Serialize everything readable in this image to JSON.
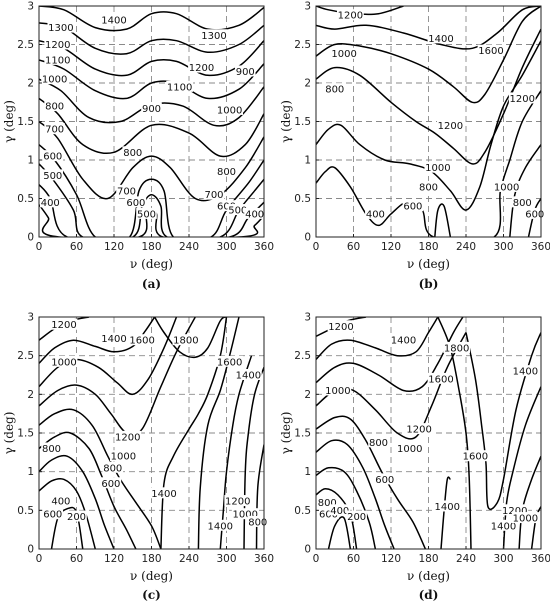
{
  "chart_data": [
    {
      "panel": "(a)",
      "type": "contour",
      "xlabel": "ν (deg)",
      "ylabel": "γ (deg)",
      "xlim": [
        0,
        360
      ],
      "ylim": [
        0,
        3
      ],
      "xticks": [
        0,
        60,
        120,
        180,
        240,
        300,
        360
      ],
      "yticks": [
        0,
        0.5,
        1,
        1.5,
        2,
        2.5,
        3
      ],
      "grid": true,
      "contour_levels": [
        400,
        500,
        600,
        700,
        800,
        900,
        1000,
        1100,
        1200,
        1300,
        1400
      ],
      "contour_labels": [
        {
          "text": "1400",
          "x": 120,
          "y": 2.82
        },
        {
          "text": "1300",
          "x": 35,
          "y": 2.72
        },
        {
          "text": "1300",
          "x": 280,
          "y": 2.62
        },
        {
          "text": "1200",
          "x": 30,
          "y": 2.5
        },
        {
          "text": "1200",
          "x": 260,
          "y": 2.2
        },
        {
          "text": "1100",
          "x": 30,
          "y": 2.3
        },
        {
          "text": "1100",
          "x": 225,
          "y": 1.95
        },
        {
          "text": "1000",
          "x": 25,
          "y": 2.05
        },
        {
          "text": "1000",
          "x": 305,
          "y": 1.65
        },
        {
          "text": "900",
          "x": 180,
          "y": 1.67
        },
        {
          "text": "900",
          "x": 330,
          "y": 2.15
        },
        {
          "text": "800",
          "x": 25,
          "y": 1.7
        },
        {
          "text": "800",
          "x": 150,
          "y": 1.1
        },
        {
          "text": "800",
          "x": 300,
          "y": 0.85
        },
        {
          "text": "700",
          "x": 25,
          "y": 1.4
        },
        {
          "text": "700",
          "x": 140,
          "y": 0.6
        },
        {
          "text": "700",
          "x": 280,
          "y": 0.55
        },
        {
          "text": "600",
          "x": 22,
          "y": 1.05
        },
        {
          "text": "600",
          "x": 155,
          "y": 0.45
        },
        {
          "text": "600",
          "x": 300,
          "y": 0.4
        },
        {
          "text": "500",
          "x": 22,
          "y": 0.8
        },
        {
          "text": "500",
          "x": 172,
          "y": 0.3
        },
        {
          "text": "500",
          "x": 318,
          "y": 0.35
        },
        {
          "text": "400",
          "x": 18,
          "y": 0.45
        },
        {
          "text": "400",
          "x": 345,
          "y": 0.3
        }
      ],
      "caption": "(a)"
    },
    {
      "panel": "(b)",
      "type": "contour",
      "xlabel": "ν (deg)",
      "ylabel": "γ (deg)",
      "xlim": [
        0,
        360
      ],
      "ylim": [
        0,
        3
      ],
      "xticks": [
        0,
        60,
        120,
        180,
        240,
        300,
        360
      ],
      "yticks": [
        0,
        0.5,
        1,
        1.5,
        2,
        2.5,
        3
      ],
      "grid": true,
      "contour_levels": [
        400,
        600,
        800,
        1000,
        1200,
        1400,
        1600
      ],
      "contour_labels": [
        {
          "text": "1200",
          "x": 55,
          "y": 2.88
        },
        {
          "text": "1400",
          "x": 200,
          "y": 2.58
        },
        {
          "text": "1600",
          "x": 280,
          "y": 2.42
        },
        {
          "text": "1000",
          "x": 45,
          "y": 2.38
        },
        {
          "text": "800",
          "x": 30,
          "y": 1.92
        },
        {
          "text": "1200",
          "x": 215,
          "y": 1.45
        },
        {
          "text": "1200",
          "x": 330,
          "y": 1.8
        },
        {
          "text": "1000",
          "x": 195,
          "y": 0.9
        },
        {
          "text": "1000",
          "x": 305,
          "y": 0.65
        },
        {
          "text": "800",
          "x": 180,
          "y": 0.65
        },
        {
          "text": "800",
          "x": 330,
          "y": 0.45
        },
        {
          "text": "600",
          "x": 155,
          "y": 0.4
        },
        {
          "text": "600",
          "x": 350,
          "y": 0.3
        },
        {
          "text": "400",
          "x": 95,
          "y": 0.3
        }
      ],
      "caption": "(b)"
    },
    {
      "panel": "(c)",
      "type": "contour",
      "xlabel": "ν (deg)",
      "ylabel": "γ (deg)",
      "xlim": [
        0,
        360
      ],
      "ylim": [
        0,
        3
      ],
      "xticks": [
        0,
        60,
        120,
        180,
        240,
        300,
        360
      ],
      "yticks": [
        0,
        0.5,
        1,
        1.5,
        2,
        2.5,
        3
      ],
      "grid": true,
      "contour_levels": [
        200,
        400,
        600,
        800,
        1000,
        1200,
        1400,
        1600,
        1800
      ],
      "contour_labels": [
        {
          "text": "1200",
          "x": 40,
          "y": 2.9
        },
        {
          "text": "1400",
          "x": 120,
          "y": 2.72
        },
        {
          "text": "1600",
          "x": 165,
          "y": 2.7
        },
        {
          "text": "1800",
          "x": 235,
          "y": 2.7
        },
        {
          "text": "1600",
          "x": 305,
          "y": 2.42
        },
        {
          "text": "1400",
          "x": 335,
          "y": 2.25
        },
        {
          "text": "1000",
          "x": 40,
          "y": 2.42
        },
        {
          "text": "1200",
          "x": 142,
          "y": 1.45
        },
        {
          "text": "1000",
          "x": 135,
          "y": 1.2
        },
        {
          "text": "800",
          "x": 20,
          "y": 1.3
        },
        {
          "text": "800",
          "x": 118,
          "y": 1.05
        },
        {
          "text": "600",
          "x": 115,
          "y": 0.85
        },
        {
          "text": "1400",
          "x": 200,
          "y": 0.72
        },
        {
          "text": "1200",
          "x": 318,
          "y": 0.62
        },
        {
          "text": "1000",
          "x": 330,
          "y": 0.45
        },
        {
          "text": "1400",
          "x": 290,
          "y": 0.3
        },
        {
          "text": "800",
          "x": 350,
          "y": 0.35
        },
        {
          "text": "600",
          "x": 22,
          "y": 0.45
        },
        {
          "text": "400",
          "x": 35,
          "y": 0.62
        },
        {
          "text": "200",
          "x": 60,
          "y": 0.42
        }
      ],
      "caption": "(c)"
    },
    {
      "panel": "(d)",
      "type": "contour",
      "xlabel": "ν (deg)",
      "ylabel": "γ (deg)",
      "xlim": [
        0,
        360
      ],
      "ylim": [
        0,
        3
      ],
      "xticks": [
        0,
        60,
        120,
        180,
        240,
        300,
        360
      ],
      "yticks": [
        0,
        0.5,
        1,
        1.5,
        2,
        2.5,
        3
      ],
      "grid": true,
      "contour_levels": [
        200,
        400,
        600,
        800,
        1000,
        1200,
        1400,
        1600,
        1800
      ],
      "contour_labels": [
        {
          "text": "1200",
          "x": 40,
          "y": 2.88
        },
        {
          "text": "1400",
          "x": 140,
          "y": 2.7
        },
        {
          "text": "1800",
          "x": 225,
          "y": 2.6
        },
        {
          "text": "1600",
          "x": 200,
          "y": 2.2
        },
        {
          "text": "1400",
          "x": 335,
          "y": 2.3
        },
        {
          "text": "1000",
          "x": 35,
          "y": 2.05
        },
        {
          "text": "800",
          "x": 100,
          "y": 1.38
        },
        {
          "text": "1200",
          "x": 165,
          "y": 1.55
        },
        {
          "text": "1000",
          "x": 150,
          "y": 1.3
        },
        {
          "text": "600",
          "x": 110,
          "y": 0.9
        },
        {
          "text": "1600",
          "x": 255,
          "y": 1.2
        },
        {
          "text": "1400",
          "x": 210,
          "y": 0.55
        },
        {
          "text": "800",
          "x": 18,
          "y": 0.6
        },
        {
          "text": "600",
          "x": 20,
          "y": 0.45
        },
        {
          "text": "400",
          "x": 38,
          "y": 0.5
        },
        {
          "text": "200",
          "x": 65,
          "y": 0.42
        },
        {
          "text": "1400",
          "x": 300,
          "y": 0.3
        },
        {
          "text": "1200",
          "x": 318,
          "y": 0.5
        },
        {
          "text": "1000",
          "x": 335,
          "y": 0.4
        }
      ],
      "caption": "(d)"
    }
  ]
}
